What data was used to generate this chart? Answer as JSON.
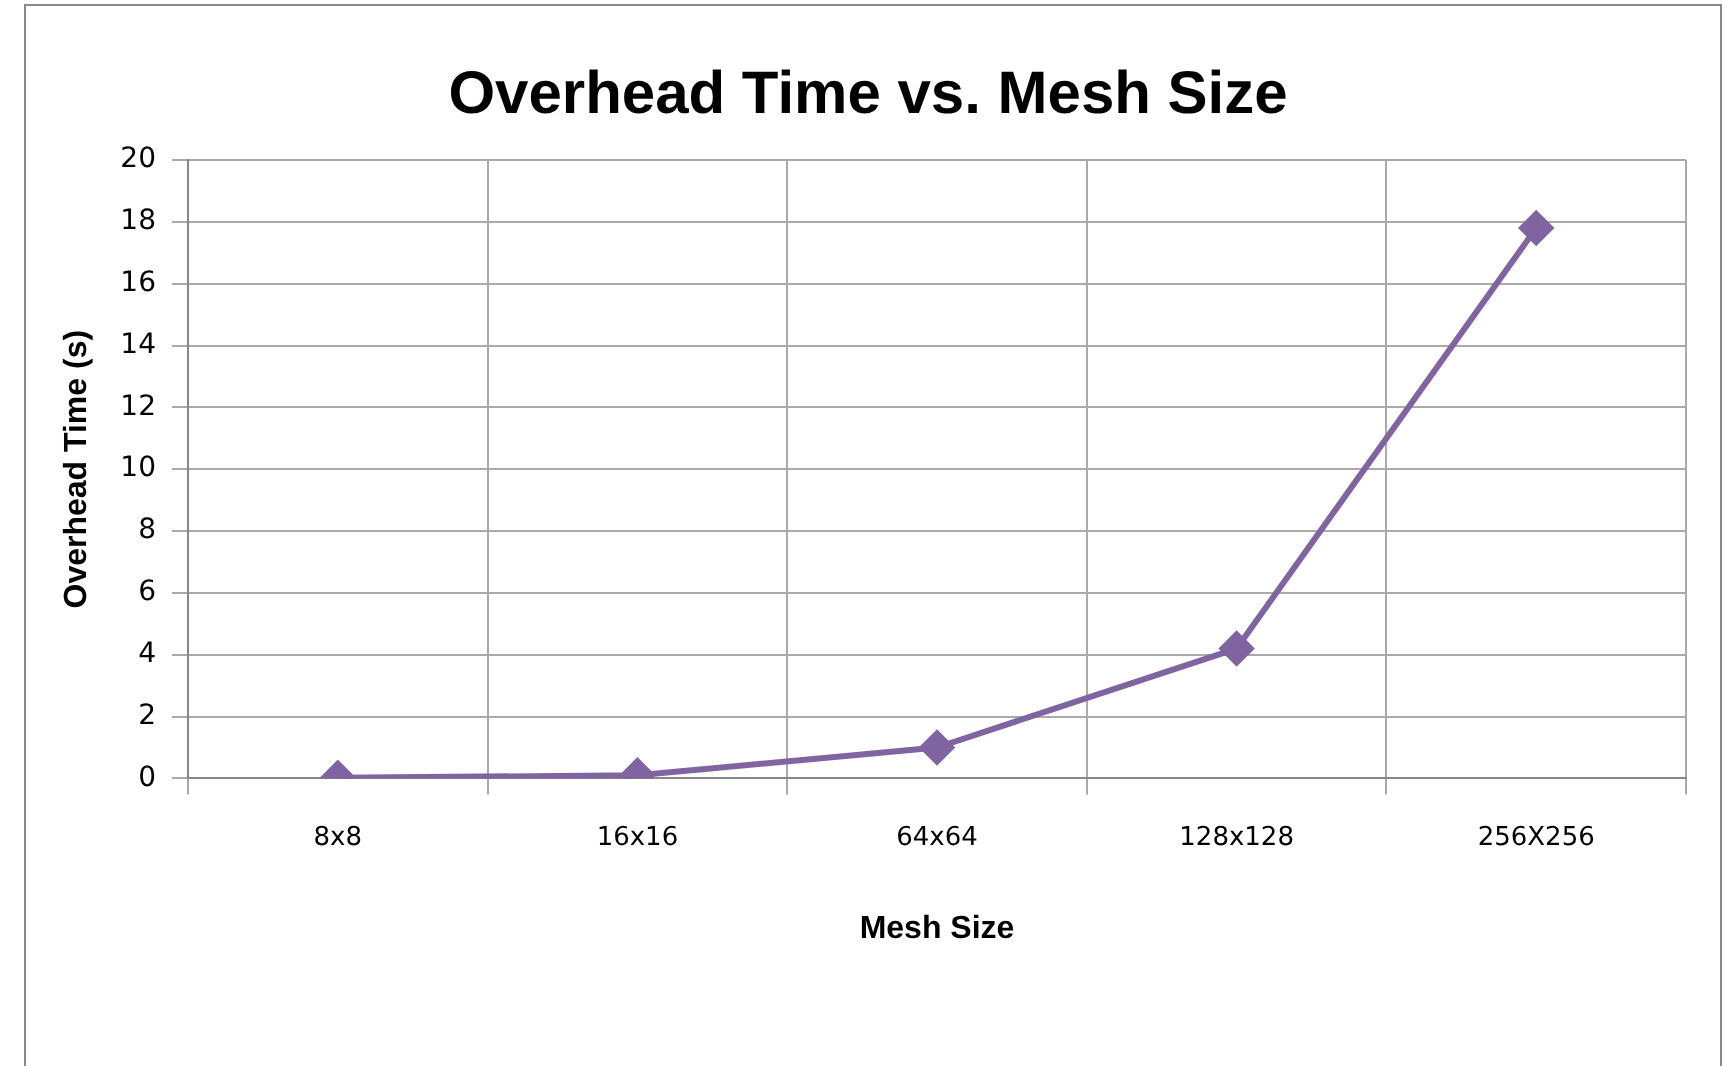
{
  "chart_data": {
    "type": "line",
    "title": "Overhead Time vs. Mesh Size",
    "xlabel": "Mesh Size",
    "ylabel": "Overhead Time (s)",
    "categories": [
      "8x8",
      "16x16",
      "64x64",
      "128x128",
      "256X256"
    ],
    "series": [
      {
        "color": "#8064a2",
        "values": [
          0.02,
          0.1,
          1.0,
          4.2,
          17.8
        ]
      }
    ],
    "ylim": [
      0,
      20
    ],
    "yticks": [
      0,
      2,
      4,
      6,
      8,
      10,
      12,
      14,
      16,
      18,
      20
    ],
    "grid": true,
    "legend": false,
    "marker": "diamond",
    "line_style": "solid"
  }
}
